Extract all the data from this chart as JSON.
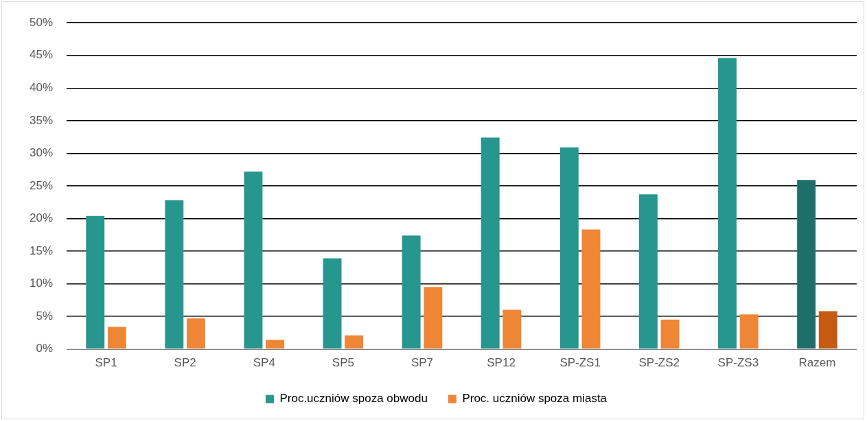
{
  "chart_data": {
    "type": "bar",
    "categories": [
      "SP1",
      "SP2",
      "SP4",
      "SP5",
      "SP7",
      "SP12",
      "SP-ZS1",
      "SP-ZS2",
      "SP-ZS3",
      "Razem"
    ],
    "series": [
      {
        "name": "Proc.uczniów spoza obwodu",
        "color": "#26968f",
        "colors": [
          "#26968f",
          "#26968f",
          "#26968f",
          "#26968f",
          "#26968f",
          "#26968f",
          "#26968f",
          "#26968f",
          "#26968f",
          "#1e6e6a"
        ],
        "values": [
          20.4,
          22.8,
          27.2,
          13.9,
          17.4,
          32.4,
          30.9,
          23.7,
          44.6,
          25.9
        ]
      },
      {
        "name": "Proc. uczniów spoza miasta",
        "color": "#ef8636",
        "colors": [
          "#ef8636",
          "#ef8636",
          "#ef8636",
          "#ef8636",
          "#ef8636",
          "#ef8636",
          "#ef8636",
          "#ef8636",
          "#ef8636",
          "#c55a11"
        ],
        "values": [
          3.4,
          4.7,
          1.4,
          2.1,
          9.5,
          6.0,
          18.3,
          4.5,
          5.3,
          5.8
        ]
      }
    ],
    "ylim": [
      0,
      50
    ],
    "yticks": [
      {
        "value": 0,
        "label": "0%"
      },
      {
        "value": 5,
        "label": "5%"
      },
      {
        "value": 10,
        "label": "10%"
      },
      {
        "value": 15,
        "label": "15%"
      },
      {
        "value": 20,
        "label": "20%"
      },
      {
        "value": 25,
        "label": "25%"
      },
      {
        "value": 30,
        "label": "30%"
      },
      {
        "value": 35,
        "label": "35%"
      },
      {
        "value": 40,
        "label": "40%"
      },
      {
        "value": 45,
        "label": "45%"
      },
      {
        "value": 50,
        "label": "50%"
      }
    ],
    "grid": "y",
    "legend": "bottom"
  }
}
